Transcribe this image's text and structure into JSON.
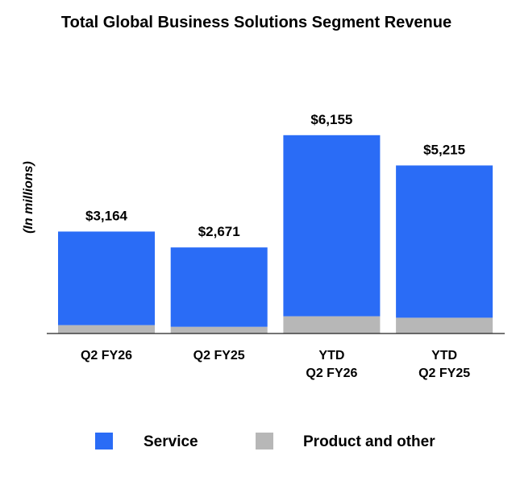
{
  "chart_data": {
    "type": "bar",
    "stacked": true,
    "title": "Total Global Business Solutions Segment Revenue",
    "xlabel": "",
    "ylabel": "(In millions)",
    "categories": [
      [
        "Q2 FY26"
      ],
      [
        "Q2 FY25"
      ],
      [
        "YTD",
        "Q2 FY26"
      ],
      [
        "YTD",
        "Q2 FY25"
      ]
    ],
    "series": [
      {
        "name": "Product and other",
        "color": "#b7b7b7",
        "values": [
          260,
          208,
          535,
          490
        ]
      },
      {
        "name": "Service",
        "color": "#2a6cf6",
        "values": [
          2904,
          2463,
          5620,
          4725
        ]
      }
    ],
    "totals": [
      3164,
      2671,
      6155,
      5215
    ],
    "total_labels": [
      "$3,164",
      "$2,671",
      "$6,155",
      "$5,215"
    ],
    "ylim": [
      0,
      7000
    ],
    "grid": false,
    "legend": {
      "position": "bottom",
      "items": [
        {
          "label": "Service",
          "color": "#2a6cf6"
        },
        {
          "label": "Product and other",
          "color": "#b7b7b7"
        }
      ]
    }
  }
}
